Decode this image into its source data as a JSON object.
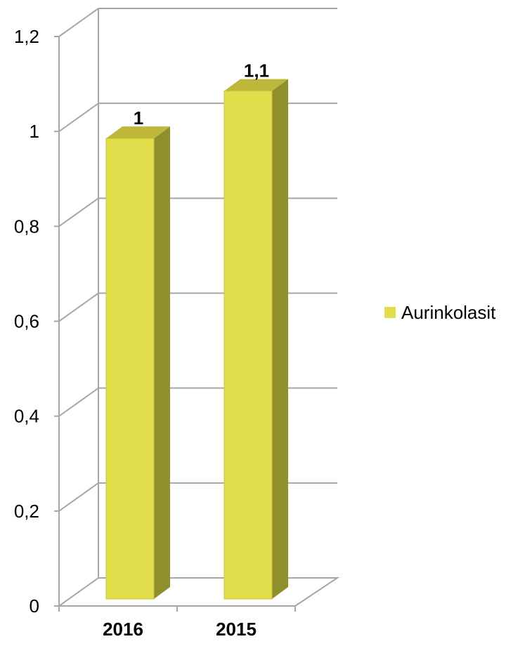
{
  "chart_data": {
    "type": "bar",
    "categories": [
      "2016",
      "2015"
    ],
    "series": [
      {
        "name": "Aurinkolasit",
        "values": [
          1,
          1.1
        ],
        "data_labels": [
          "1",
          "1,1"
        ]
      }
    ],
    "ylim": [
      0,
      1.2
    ],
    "y_ticks": [
      {
        "value": 0,
        "label": "0"
      },
      {
        "value": 0.2,
        "label": "0,2"
      },
      {
        "value": 0.4,
        "label": "0,4"
      },
      {
        "value": 0.6,
        "label": "0,6"
      },
      {
        "value": 0.8,
        "label": "0,8"
      },
      {
        "value": 1,
        "label": "1"
      },
      {
        "value": 1.2,
        "label": "1,2"
      }
    ],
    "grid": true,
    "three_d": true,
    "legend_position": "right",
    "colors": {
      "bar_front": "#e2dd4a",
      "bar_side": "#8f8f2e",
      "bar_top": "#bdb83a",
      "grid": "#a6a6a6"
    }
  },
  "legend": {
    "label": "Aurinkolasit"
  }
}
